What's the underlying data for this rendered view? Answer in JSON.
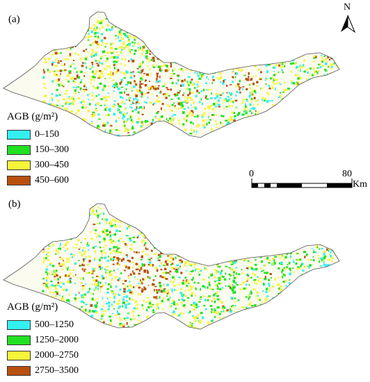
{
  "panels": [
    {
      "label": "(a)",
      "legend_title": "AGB (g/m²)",
      "classes": [
        {
          "label": "0–150",
          "color": "#33f0f0"
        },
        {
          "label": "150–300",
          "color": "#22e022"
        },
        {
          "label": "300–450",
          "color": "#f5f53a"
        },
        {
          "label": "450–600",
          "color": "#b8500e"
        }
      ]
    },
    {
      "label": "(b)",
      "legend_title": "AGB (g/m²)",
      "classes": [
        {
          "label": "500–1250",
          "color": "#33f0f0"
        },
        {
          "label": "1250–2000",
          "color": "#22e022"
        },
        {
          "label": "2000–2750",
          "color": "#f5f53a"
        },
        {
          "label": "2750–3500",
          "color": "#b8500e"
        }
      ]
    }
  ],
  "north_arrow": {
    "label": "N",
    "icon": "north-arrow-icon"
  },
  "scale_bar": {
    "start_label": "0",
    "end_label": "80",
    "unit": "Km"
  }
}
